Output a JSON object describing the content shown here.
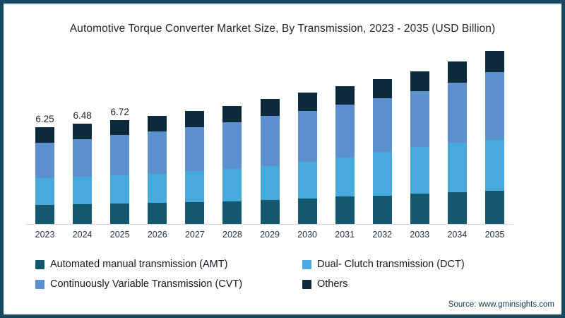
{
  "frame": {
    "border_color": "#17485F",
    "background": "#FFFFFF"
  },
  "title": {
    "text": "Automotive Torque Converter Market Size, By Transmission, 2023 - 2035 (USD Billion)"
  },
  "source": {
    "text": "Source: www.gminsights.com"
  },
  "legend": {
    "items": [
      {
        "key": "amt",
        "label": "Automated manual transmission (AMT)",
        "color": "#14576E"
      },
      {
        "key": "dct",
        "label": "Dual- Clutch transmission (DCT)",
        "color": "#47A9DC"
      },
      {
        "key": "cvt",
        "label": "Continuously Variable Transmission (CVT)",
        "color": "#5B90CC"
      },
      {
        "key": "others",
        "label": "Others",
        "color": "#0D2A3C"
      }
    ]
  },
  "chart_data": {
    "type": "bar",
    "stacked": true,
    "title": "Automotive Torque Converter Market Size, By Transmission, 2023 - 2035 (USD Billion)",
    "unit": "USD Billion",
    "categories": [
      "2023",
      "2024",
      "2025",
      "2026",
      "2027",
      "2028",
      "2029",
      "2030",
      "2031",
      "2032",
      "2033",
      "2034",
      "2035"
    ],
    "series": [
      {
        "key": "amt",
        "name": "Automated manual transmission (AMT)",
        "color": "#14576E",
        "values": [
          1.22,
          1.28,
          1.33,
          1.37,
          1.41,
          1.46,
          1.55,
          1.65,
          1.76,
          1.84,
          1.96,
          2.06,
          2.15
        ]
      },
      {
        "key": "dct",
        "name": "Dual- Clutch transmission (DCT)",
        "color": "#47A9DC",
        "values": [
          1.74,
          1.78,
          1.82,
          1.89,
          2.0,
          2.08,
          2.2,
          2.35,
          2.55,
          2.8,
          3.02,
          3.18,
          3.28
        ]
      },
      {
        "key": "cvt",
        "name": "Continuously Variable Transmission (CVT)",
        "color": "#5B90CC",
        "values": [
          2.3,
          2.43,
          2.59,
          2.7,
          2.86,
          3.05,
          3.23,
          3.3,
          3.38,
          3.48,
          3.6,
          3.9,
          4.37
        ]
      },
      {
        "key": "others",
        "name": "Others",
        "color": "#0D2A3C",
        "values": [
          0.99,
          0.99,
          0.98,
          1.02,
          1.04,
          1.05,
          1.08,
          1.19,
          1.2,
          1.23,
          1.28,
          1.34,
          1.37
        ]
      }
    ],
    "totals": [
      6.25,
      6.48,
      6.72,
      6.98,
      7.31,
      7.64,
      8.06,
      8.49,
      8.89,
      9.35,
      9.86,
      10.48,
      11.17
    ],
    "bar_labels": [
      "6.25",
      "6.48",
      "6.72",
      "",
      "",
      "",
      "",
      "",
      "",
      "",
      "",
      "",
      ""
    ],
    "ylim": [
      0,
      11.4
    ],
    "grid": false,
    "legend_position": "bottom"
  }
}
